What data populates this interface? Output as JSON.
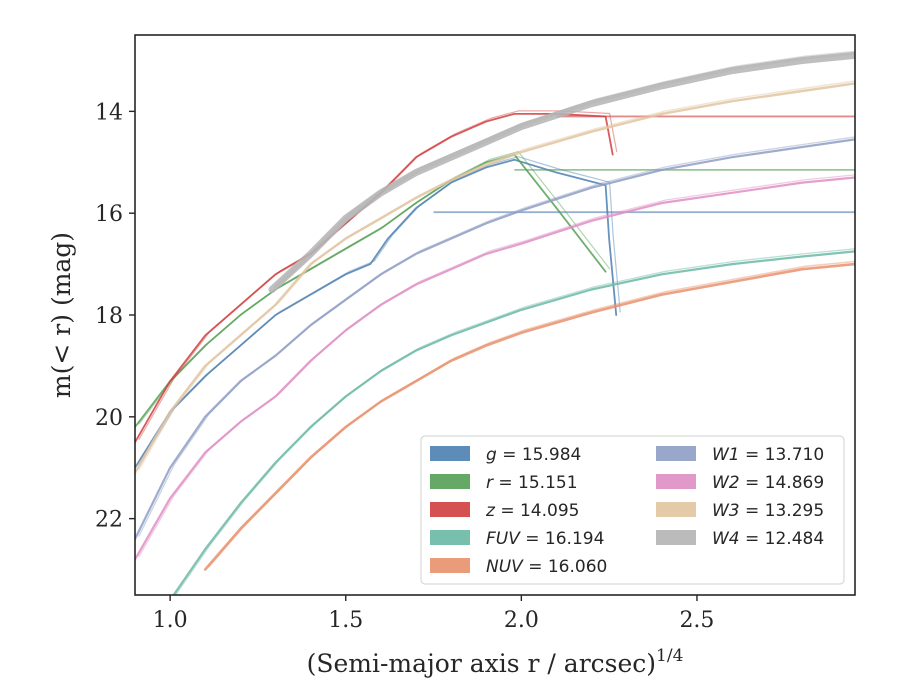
{
  "chart_data": {
    "type": "line",
    "xlabel": "(Semi-major axis r / arcsec)",
    "xlabel_exponent": "1/4",
    "ylabel": "m(< r) (mag)",
    "xlim": [
      0.9,
      2.95
    ],
    "ylim": [
      23.5,
      12.5
    ],
    "y_inverted": true,
    "x_ticks": [
      "1.0",
      "1.5",
      "2.0",
      "2.5"
    ],
    "y_ticks": [
      "14",
      "16",
      "18",
      "20",
      "22"
    ],
    "grid": false,
    "legend_position": "lower-right",
    "series": [
      {
        "name": "g = 15.984",
        "label_var": "g",
        "label_val": " = 15.984",
        "color": "#4c7fb0",
        "width": 1.8,
        "x": [
          0.9,
          1.0,
          1.1,
          1.2,
          1.3,
          1.4,
          1.5,
          1.57,
          1.62,
          1.7,
          1.8,
          1.9,
          1.98,
          2.1,
          2.24,
          2.25,
          2.27
        ],
        "y": [
          21.0,
          19.9,
          19.2,
          18.6,
          18.0,
          17.6,
          17.2,
          17.0,
          16.5,
          15.9,
          15.4,
          15.1,
          14.95,
          15.2,
          15.45,
          16.5,
          18.0
        ],
        "plateau_x": [
          1.75,
          2.95
        ],
        "plateau_y": 15.98
      },
      {
        "name": "r = 15.151",
        "label_var": "r",
        "label_val": " = 15.151",
        "color": "#55a055",
        "width": 1.8,
        "x": [
          0.9,
          1.0,
          1.1,
          1.2,
          1.3,
          1.4,
          1.5,
          1.6,
          1.7,
          1.8,
          1.9,
          1.98,
          2.1,
          2.24
        ],
        "y": [
          20.2,
          19.3,
          18.6,
          18.0,
          17.5,
          17.1,
          16.7,
          16.3,
          15.8,
          15.35,
          15.0,
          14.85,
          15.9,
          17.15
        ],
        "plateau_x": [
          1.98,
          2.95
        ],
        "plateau_y": 15.15
      },
      {
        "name": "z = 14.095",
        "label_var": "z",
        "label_val": " = 14.095",
        "color": "#d03e3e",
        "width": 1.8,
        "x": [
          0.9,
          1.0,
          1.1,
          1.2,
          1.3,
          1.4,
          1.5,
          1.6,
          1.7,
          1.8,
          1.9,
          1.98,
          2.1,
          2.24,
          2.26
        ],
        "y": [
          20.5,
          19.3,
          18.4,
          17.8,
          17.2,
          16.8,
          16.2,
          15.6,
          14.9,
          14.5,
          14.2,
          14.05,
          14.05,
          14.1,
          14.85
        ],
        "plateau_x": [
          2.1,
          2.95
        ],
        "plateau_y": 14.1
      },
      {
        "name": "FUV = 16.194",
        "label_var": "FUV",
        "label_val": " = 16.194",
        "color": "#6ab8a4",
        "width": 2.2,
        "x": [
          1.0,
          1.1,
          1.2,
          1.3,
          1.4,
          1.5,
          1.6,
          1.7,
          1.8,
          1.9,
          2.0,
          2.2,
          2.4,
          2.6,
          2.8,
          2.95
        ],
        "y": [
          23.6,
          22.6,
          21.7,
          20.9,
          20.2,
          19.6,
          19.1,
          18.7,
          18.4,
          18.15,
          17.9,
          17.5,
          17.2,
          17.0,
          16.85,
          16.75
        ]
      },
      {
        "name": "NUV = 16.060",
        "label_var": "NUV",
        "label_val": " = 16.060",
        "color": "#e8906c",
        "width": 2.6,
        "x": [
          1.1,
          1.2,
          1.3,
          1.4,
          1.5,
          1.6,
          1.7,
          1.8,
          1.9,
          2.0,
          2.2,
          2.4,
          2.6,
          2.8,
          2.95
        ],
        "y": [
          23.0,
          22.2,
          21.5,
          20.8,
          20.2,
          19.7,
          19.3,
          18.9,
          18.6,
          18.35,
          17.95,
          17.6,
          17.35,
          17.1,
          17.0
        ]
      },
      {
        "name": "W1 = 13.710",
        "label_var": "W1",
        "label_val": " = 13.710",
        "color": "#8e9ec4",
        "width": 2.2,
        "x": [
          0.9,
          1.0,
          1.1,
          1.2,
          1.3,
          1.4,
          1.5,
          1.6,
          1.7,
          1.8,
          1.9,
          2.0,
          2.2,
          2.4,
          2.6,
          2.8,
          2.95
        ],
        "y": [
          22.4,
          21.0,
          20.0,
          19.3,
          18.8,
          18.2,
          17.7,
          17.2,
          16.8,
          16.5,
          16.2,
          15.95,
          15.5,
          15.15,
          14.9,
          14.7,
          14.55
        ]
      },
      {
        "name": "W2 = 14.869",
        "label_var": "W2",
        "label_val": " = 14.869",
        "color": "#de8ec4",
        "width": 2.2,
        "x": [
          0.9,
          1.0,
          1.1,
          1.2,
          1.3,
          1.4,
          1.5,
          1.6,
          1.7,
          1.8,
          1.9,
          2.0,
          2.2,
          2.4,
          2.6,
          2.8,
          2.95
        ],
        "y": [
          22.8,
          21.6,
          20.7,
          20.1,
          19.6,
          18.9,
          18.3,
          17.8,
          17.4,
          17.1,
          16.8,
          16.6,
          16.15,
          15.8,
          15.6,
          15.4,
          15.3
        ]
      },
      {
        "name": "W3 = 13.295",
        "label_var": "W3",
        "label_val": " = 13.295",
        "color": "#e2c4a0",
        "width": 2.4,
        "x": [
          0.9,
          1.0,
          1.1,
          1.2,
          1.3,
          1.4,
          1.5,
          1.6,
          1.7,
          1.8,
          1.9,
          2.0,
          2.2,
          2.4,
          2.6,
          2.8,
          2.95
        ],
        "y": [
          21.1,
          19.9,
          19.0,
          18.4,
          17.8,
          17.0,
          16.5,
          16.1,
          15.7,
          15.35,
          15.05,
          14.8,
          14.4,
          14.05,
          13.8,
          13.6,
          13.45
        ]
      },
      {
        "name": "W4 = 12.484",
        "label_var": "W4",
        "label_val": " = 12.484",
        "color": "#b4b4b4",
        "width": 7,
        "x": [
          1.29,
          1.4,
          1.5,
          1.6,
          1.7,
          1.8,
          1.9,
          2.0,
          2.2,
          2.4,
          2.6,
          2.8,
          2.95
        ],
        "y": [
          17.5,
          16.8,
          16.1,
          15.6,
          15.2,
          14.9,
          14.6,
          14.3,
          13.85,
          13.5,
          13.2,
          13.0,
          12.9
        ]
      }
    ]
  }
}
